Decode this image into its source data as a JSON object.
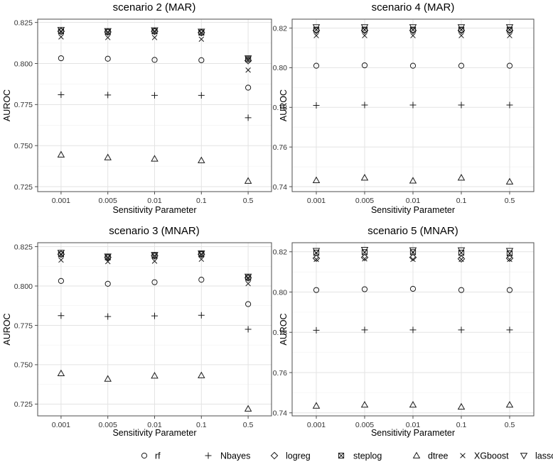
{
  "legend": [
    {
      "key": "rf",
      "label": "rf"
    },
    {
      "key": "Nbayes",
      "label": "Nbayes"
    },
    {
      "key": "logreg",
      "label": "logreg"
    },
    {
      "key": "steplog",
      "label": "steplog"
    },
    {
      "key": "dtree",
      "label": "dtree"
    },
    {
      "key": "XGboost",
      "label": "XGboost"
    },
    {
      "key": "lassolog",
      "label": "lassolog"
    }
  ],
  "chart_data": [
    {
      "type": "scatter",
      "title": "scenario 2 (MAR)",
      "xlabel": "Sensitivity Parameter",
      "ylabel": "AUROC",
      "categories": [
        "0.001",
        "0.005",
        "0.01",
        "0.1",
        "0.5"
      ],
      "ylim": [
        0.722,
        0.827
      ],
      "yticks": [
        0.725,
        0.75,
        0.775,
        0.8,
        0.825
      ],
      "ytick_labels": [
        "0.725",
        "0.750",
        "0.775",
        "0.800",
        "0.825"
      ],
      "series": [
        {
          "name": "rf",
          "values": [
            0.8032,
            0.8029,
            0.8022,
            0.802,
            0.7853
          ]
        },
        {
          "name": "Nbayes",
          "values": [
            0.781,
            0.7808,
            0.7806,
            0.7806,
            0.767
          ]
        },
        {
          "name": "logreg",
          "values": [
            0.8196,
            0.8192,
            0.8196,
            0.8188,
            0.8018
          ]
        },
        {
          "name": "steplog",
          "values": [
            0.8196,
            0.8192,
            0.8196,
            0.8188,
            0.8026
          ]
        },
        {
          "name": "dtree",
          "values": [
            0.7445,
            0.7428,
            0.742,
            0.741,
            0.7285
          ]
        },
        {
          "name": "XGboost",
          "values": [
            0.8162,
            0.8158,
            0.8158,
            0.8148,
            0.796
          ]
        },
        {
          "name": "lassolog",
          "values": [
            0.8205,
            0.8198,
            0.8203,
            0.8195,
            0.8032
          ]
        }
      ]
    },
    {
      "type": "scatter",
      "title": "scenario 4 (MAR)",
      "xlabel": "Sensitivity Parameter",
      "ylabel": "AUROC",
      "categories": [
        "0.001",
        "0.005",
        "0.01",
        "0.1",
        "0.5"
      ],
      "ylim": [
        0.7375,
        0.8245
      ],
      "yticks": [
        0.74,
        0.76,
        0.78,
        0.8,
        0.82
      ],
      "ytick_labels": [
        "0.74",
        "0.76",
        "0.78",
        "0.80",
        "0.82"
      ],
      "series": [
        {
          "name": "rf",
          "values": [
            0.801,
            0.8012,
            0.801,
            0.801,
            0.801
          ]
        },
        {
          "name": "Nbayes",
          "values": [
            0.781,
            0.7812,
            0.7812,
            0.7812,
            0.7812
          ]
        },
        {
          "name": "logreg",
          "values": [
            0.8188,
            0.8188,
            0.8188,
            0.8188,
            0.8188
          ]
        },
        {
          "name": "steplog",
          "values": [
            0.8192,
            0.8192,
            0.8192,
            0.8192,
            0.8192
          ]
        },
        {
          "name": "dtree",
          "values": [
            0.7432,
            0.7445,
            0.743,
            0.7445,
            0.7425
          ]
        },
        {
          "name": "XGboost",
          "values": [
            0.8162,
            0.8162,
            0.8162,
            0.8162,
            0.8162
          ]
        },
        {
          "name": "lassolog",
          "values": [
            0.8205,
            0.8205,
            0.8205,
            0.8205,
            0.8205
          ]
        }
      ]
    },
    {
      "type": "scatter",
      "title": "scenario 3 (MNAR)",
      "xlabel": "Sensitivity Parameter",
      "ylabel": "AUROC",
      "categories": [
        "0.001",
        "0.005",
        "0.01",
        "0.1",
        "0.5"
      ],
      "ylim": [
        0.7175,
        0.8275
      ],
      "yticks": [
        0.725,
        0.75,
        0.775,
        0.8,
        0.825
      ],
      "ytick_labels": [
        "0.725",
        "0.750",
        "0.775",
        "0.800",
        "0.825"
      ],
      "series": [
        {
          "name": "rf",
          "values": [
            0.8032,
            0.8014,
            0.8024,
            0.804,
            0.7885
          ]
        },
        {
          "name": "Nbayes",
          "values": [
            0.7812,
            0.7806,
            0.781,
            0.7814,
            0.7725
          ]
        },
        {
          "name": "logreg",
          "values": [
            0.8202,
            0.8182,
            0.8192,
            0.8202,
            0.8052
          ]
        },
        {
          "name": "steplog",
          "values": [
            0.8202,
            0.8182,
            0.8192,
            0.8202,
            0.8052
          ]
        },
        {
          "name": "dtree",
          "values": [
            0.7445,
            0.741,
            0.743,
            0.7432,
            0.722
          ]
        },
        {
          "name": "XGboost",
          "values": [
            0.8165,
            0.8155,
            0.8158,
            0.817,
            0.8015
          ]
        },
        {
          "name": "lassolog",
          "values": [
            0.8212,
            0.8188,
            0.8198,
            0.8208,
            0.806
          ]
        }
      ]
    },
    {
      "type": "scatter",
      "title": "scenario 5 (MNAR)",
      "xlabel": "Sensitivity Parameter",
      "ylabel": "AUROC",
      "categories": [
        "0.001",
        "0.005",
        "0.01",
        "0.1",
        "0.5"
      ],
      "ylim": [
        0.7385,
        0.8245
      ],
      "yticks": [
        0.74,
        0.76,
        0.78,
        0.8,
        0.82
      ],
      "ytick_labels": [
        "0.74",
        "0.76",
        "0.78",
        "0.80",
        "0.82"
      ],
      "series": [
        {
          "name": "rf",
          "values": [
            0.801,
            0.8014,
            0.8016,
            0.801,
            0.801
          ]
        },
        {
          "name": "Nbayes",
          "values": [
            0.781,
            0.7812,
            0.7812,
            0.7812,
            0.7812
          ]
        },
        {
          "name": "logreg",
          "values": [
            0.8168,
            0.8172,
            0.8172,
            0.8165,
            0.8168
          ]
        },
        {
          "name": "steplog",
          "values": [
            0.8195,
            0.8198,
            0.8198,
            0.8195,
            0.8192
          ]
        },
        {
          "name": "dtree",
          "values": [
            0.7435,
            0.744,
            0.744,
            0.743,
            0.744
          ]
        },
        {
          "name": "XGboost",
          "values": [
            0.8162,
            0.8165,
            0.8162,
            0.8162,
            0.8162
          ]
        },
        {
          "name": "lassolog",
          "values": [
            0.8205,
            0.821,
            0.8208,
            0.8208,
            0.8205
          ]
        }
      ]
    }
  ]
}
